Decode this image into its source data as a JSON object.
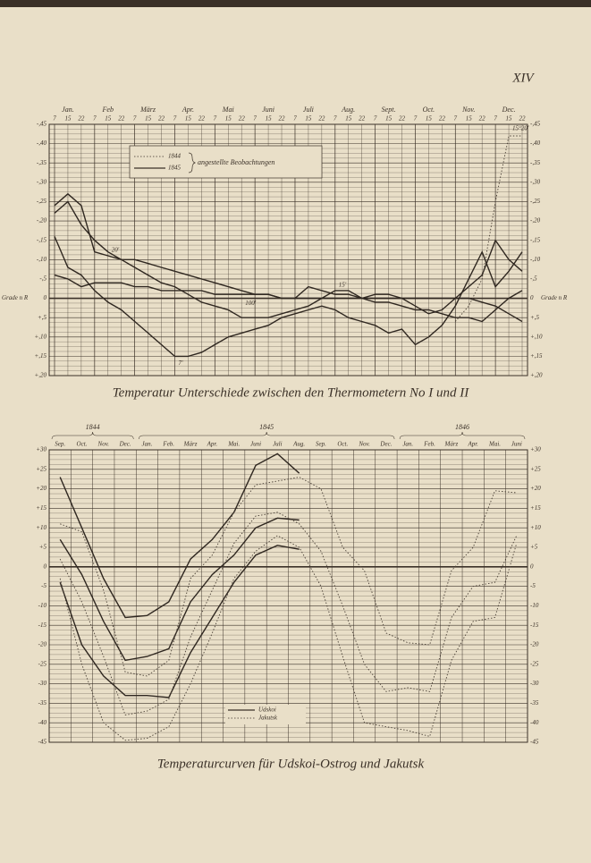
{
  "plate": "XIV",
  "chart_data": [
    {
      "type": "line",
      "title": "Temperatur Unterschiede zwischen den Thermometern No I und II",
      "months": [
        "Jan.",
        "Feb",
        "März",
        "Apr.",
        "Mai",
        "Juni",
        "Juli",
        "Aug.",
        "Sept.",
        "Oct.",
        "Nov.",
        "Dec."
      ],
      "categories": [
        "7",
        "15",
        "22",
        "7",
        "15",
        "22",
        "7",
        "15",
        "22",
        "7",
        "15",
        "22",
        "7",
        "15",
        "22",
        "7",
        "15",
        "22",
        "7",
        "15",
        "22",
        "7",
        "15",
        "22",
        "7",
        "15",
        "22",
        "7",
        "15",
        "22",
        "7",
        "15",
        "22",
        "7",
        "15",
        "22"
      ],
      "ylim": [
        0.2,
        -0.45
      ],
      "yticks": [
        {
          "value": -0.45,
          "label": "-,45"
        },
        {
          "value": -0.4,
          "label": "-,40"
        },
        {
          "value": -0.35,
          "label": "-,35"
        },
        {
          "value": -0.3,
          "label": "-,30"
        },
        {
          "value": -0.25,
          "label": "-,25"
        },
        {
          "value": -0.2,
          "label": "-,20"
        },
        {
          "value": -0.15,
          "label": "-,15"
        },
        {
          "value": -0.1,
          "label": "-,10"
        },
        {
          "value": -0.05,
          "label": "-,5"
        },
        0,
        {
          "value": 0.05,
          "label": "+,5"
        },
        {
          "value": 0.1,
          "label": "+,10"
        },
        {
          "value": 0.15,
          "label": "+,15"
        },
        {
          "value": 0.2,
          "label": "+,20"
        }
      ],
      "axis_label": "Grade n R",
      "legend": {
        "entries": [
          {
            "name": "1844",
            "dash": "dotted"
          },
          {
            "name": "1845",
            "dash": "solid"
          }
        ],
        "note": "angestellte Beobachtungen"
      },
      "series": [
        {
          "name": "7'",
          "color": "#2f2720",
          "dash": "solid",
          "values": [
            -0.16,
            -0.08,
            -0.06,
            -0.02,
            0.01,
            0.03,
            0.06,
            0.09,
            0.12,
            0.15,
            0.15,
            0.14,
            0.12,
            0.1,
            0.09,
            0.08,
            0.07,
            0.05,
            0.04,
            0.03,
            0.02,
            0.03,
            0.05,
            0.06,
            0.07,
            0.09,
            0.08,
            0.12,
            0.1,
            0.07,
            0.02,
            -0.05,
            -0.12,
            -0.03,
            -0.07,
            -0.12
          ]
        },
        {
          "name": "15'",
          "color": "#2f2720",
          "dash": "solid",
          "values": [
            -0.22,
            -0.25,
            -0.19,
            -0.15,
            -0.12,
            -0.1,
            -0.08,
            -0.06,
            -0.04,
            -0.03,
            -0.01,
            0.01,
            0.02,
            0.03,
            0.05,
            0.05,
            0.05,
            0.04,
            0.03,
            0.02,
            0,
            -0.02,
            -0.02,
            0,
            -0.01,
            -0.01,
            0,
            0.02,
            0.04,
            0.03,
            0,
            -0.03,
            -0.06,
            -0.15,
            -0.1,
            -0.07
          ]
        },
        {
          "name": "100'",
          "color": "#2f2720",
          "dash": "solid",
          "values": [
            -0.06,
            -0.05,
            -0.03,
            -0.04,
            -0.04,
            -0.04,
            -0.03,
            -0.03,
            -0.02,
            -0.02,
            -0.02,
            -0.02,
            -0.01,
            -0.01,
            -0.01,
            -0.01,
            -0.01,
            0,
            0,
            0,
            0,
            0,
            0,
            0,
            0,
            0,
            0,
            0,
            0,
            0,
            0,
            0,
            0.01,
            0.02,
            0.04,
            0.06
          ]
        },
        {
          "name": "20'",
          "color": "#2f2720",
          "dash": "solid",
          "values": [
            -0.24,
            -0.27,
            -0.24,
            -0.12,
            -0.11,
            -0.1,
            -0.1,
            -0.09,
            -0.08,
            -0.07,
            -0.06,
            -0.05,
            -0.04,
            -0.03,
            -0.02,
            -0.01,
            -0.01,
            0,
            0,
            -0.03,
            -0.02,
            -0.01,
            -0.01,
            0,
            0.01,
            0.01,
            0.02,
            0.03,
            0.03,
            0.04,
            0.05,
            0.05,
            0.06,
            0.03,
            0,
            -0.02
          ]
        },
        {
          "name": "15°20'",
          "color": "#4a4036",
          "dash": "dotted",
          "values": [
            null,
            null,
            null,
            null,
            null,
            null,
            null,
            null,
            null,
            null,
            null,
            null,
            null,
            null,
            null,
            null,
            null,
            null,
            null,
            null,
            null,
            null,
            null,
            null,
            null,
            null,
            null,
            null,
            null,
            null,
            0.06,
            0.02,
            -0.05,
            -0.25,
            -0.42,
            -0.42
          ]
        }
      ]
    },
    {
      "type": "line",
      "title": "Temperaturcurven für Udskoi-Ostrog und Jakutsk",
      "years": [
        "1844",
        "1845",
        "1846"
      ],
      "categories": [
        "Sep.",
        "Oct.",
        "Nov.",
        "Dec.",
        "Jan.",
        "Feb.",
        "März",
        "Apr.",
        "Mai.",
        "Juni",
        "Juli",
        "Aug.",
        "Sep.",
        "Oct.",
        "Nov.",
        "Dec.",
        "Jan.",
        "Feb.",
        "März",
        "Apr.",
        "Mai.",
        "Juni"
      ],
      "year_spans": [
        [
          0,
          3
        ],
        [
          4,
          15
        ],
        [
          16,
          21
        ]
      ],
      "ylim": [
        -45,
        30
      ],
      "yticks": [
        {
          "value": 30,
          "label": "+30"
        },
        {
          "value": 25,
          "label": "+25"
        },
        {
          "value": 20,
          "label": "+20"
        },
        {
          "value": 15,
          "label": "+15"
        },
        {
          "value": 10,
          "label": "+10"
        },
        {
          "value": 5,
          "label": "+5"
        },
        0,
        -5,
        -10,
        -15,
        -20,
        -25,
        -30,
        -35,
        -40,
        -45
      ],
      "legend": [
        {
          "name": "Udskoi",
          "dash": "solid"
        },
        {
          "name": "Jakutsk",
          "dash": "dotted"
        }
      ],
      "series": [
        {
          "name": "Udskoi",
          "color": "#2f2720",
          "dash": "solid",
          "values": [
            23,
            10,
            -3,
            -13,
            -12.5,
            -9,
            2,
            7,
            14,
            26,
            29,
            24,
            null,
            null,
            null,
            null,
            null,
            null,
            null,
            null,
            null,
            null
          ]
        },
        {
          "name": "Udskoi",
          "color": "#2f2720",
          "dash": "solid",
          "values": [
            7,
            -2,
            -14,
            -24,
            -23,
            -21,
            -9,
            -2,
            3,
            10,
            12.5,
            12,
            null,
            null,
            null,
            null,
            null,
            null,
            null,
            null,
            null,
            null
          ]
        },
        {
          "name": "Udskoi",
          "color": "#2f2720",
          "dash": "solid",
          "values": [
            -4,
            -20,
            -28,
            -33,
            -33,
            -33.5,
            -22,
            -13,
            -4,
            3,
            5.5,
            4.5,
            null,
            null,
            null,
            null,
            null,
            null,
            null,
            null,
            null,
            null
          ]
        },
        {
          "name": "Jakutsk",
          "color": "#4a4036",
          "dash": "dotted",
          "values": [
            11,
            9,
            -6,
            -27,
            -28,
            -24,
            -3,
            3,
            14,
            21,
            22,
            23,
            20,
            5,
            -1,
            -17,
            -19.5,
            -20,
            -1,
            5,
            19.5,
            19
          ]
        },
        {
          "name": "Jakutsk",
          "color": "#4a4036",
          "dash": "dotted",
          "values": [
            2,
            -9,
            -23,
            -38,
            -37,
            -34,
            -18,
            -6,
            6,
            13,
            14,
            11,
            4,
            -10,
            -25,
            -32,
            -31,
            -32,
            -13,
            -5,
            -4,
            8
          ]
        },
        {
          "name": "Jakutsk",
          "color": "#4a4036",
          "dash": "dotted",
          "values": [
            -3,
            -25,
            -40,
            -44.5,
            -44,
            -41,
            -30,
            -17,
            -3,
            4,
            8,
            5,
            -5,
            -23,
            -40,
            -41,
            -42,
            -43.5,
            -24,
            -14,
            -13,
            6
          ]
        }
      ]
    }
  ]
}
